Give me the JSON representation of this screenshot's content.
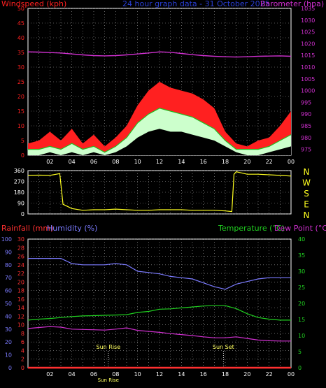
{
  "header": {
    "left": "Windspeed (kph)",
    "center": "24 hour graph data - 31 October 2025",
    "right": "Barometer (hpa)"
  },
  "colors": {
    "windspeed": "#ff2020",
    "barometer": "#d030d0",
    "title": "#2a3fd6",
    "wind_avg": "#20c020",
    "wind_light": "#ccffcc",
    "direction": "#ffff20",
    "rainfall": "#ff3030",
    "humidity": "#7b7bff",
    "temperature": "#20d020",
    "dew_point": "#d030d0",
    "frame": "#ffffff",
    "grid": "#aaaaaa"
  },
  "chart_data": [
    {
      "type": "area",
      "name": "wind-barometer",
      "left_axis": {
        "label": "Windspeed (kph)",
        "ticks": [
          0,
          5,
          10,
          15,
          20,
          25,
          30,
          35,
          40,
          45,
          50
        ],
        "range": [
          0,
          50
        ]
      },
      "right_axis": {
        "label": "Barometer (hpa)",
        "ticks": [
          975,
          980,
          985,
          990,
          995,
          1000,
          1005,
          1010,
          1015,
          1020,
          1025,
          1030,
          1035
        ],
        "range": [
          972.5,
          1035
        ]
      },
      "x_ticks": [
        "02",
        "04",
        "06",
        "08",
        "10",
        "12",
        "14",
        "16",
        "18",
        "20",
        "22",
        "00"
      ],
      "x_hours": [
        0,
        1,
        2,
        3,
        4,
        5,
        6,
        7,
        8,
        9,
        10,
        11,
        12,
        13,
        14,
        15,
        16,
        17,
        18,
        19,
        20,
        21,
        22,
        23,
        24
      ],
      "gust": [
        4,
        5,
        8,
        5,
        9,
        4,
        7,
        3,
        6,
        10,
        17,
        22,
        25,
        23,
        22,
        21,
        19,
        16,
        8,
        4,
        3,
        5,
        6,
        10,
        15
      ],
      "average": [
        2,
        2,
        3,
        2,
        4,
        2,
        3,
        1,
        3,
        6,
        11,
        14,
        16,
        15,
        14,
        13,
        11,
        9,
        5,
        2,
        2,
        2,
        3,
        5,
        7
      ],
      "lull": [
        0,
        0,
        1,
        0,
        1,
        0,
        1,
        0,
        1,
        3,
        6,
        8,
        9,
        8,
        8,
        7,
        6,
        5,
        3,
        1,
        0,
        0,
        1,
        2,
        3
      ],
      "barometer": [
        1016.5,
        1016.4,
        1016.2,
        1016.0,
        1015.6,
        1015.2,
        1014.9,
        1014.8,
        1014.9,
        1015.2,
        1015.6,
        1016.0,
        1016.5,
        1016.3,
        1015.8,
        1015.3,
        1014.9,
        1014.6,
        1014.4,
        1014.3,
        1014.4,
        1014.6,
        1014.7,
        1014.8,
        1014.6
      ]
    },
    {
      "type": "line",
      "name": "wind-direction",
      "left_axis": {
        "ticks": [
          0,
          90,
          180,
          270,
          360
        ],
        "range": [
          0,
          360
        ]
      },
      "right_labels": [
        "N",
        "W",
        "S",
        "E",
        "N"
      ],
      "x_ticks": [
        "02",
        "04",
        "06",
        "08",
        "10",
        "12",
        "14",
        "16",
        "18",
        "20",
        "22",
        "00"
      ],
      "x_hours": [
        0,
        1,
        2,
        2.9,
        3.2,
        4,
        5,
        6,
        7,
        8,
        9,
        10,
        11,
        12,
        13,
        14,
        15,
        16,
        17,
        18,
        18.6,
        18.8,
        19,
        20,
        21,
        22,
        23,
        24
      ],
      "direction": [
        320,
        322,
        320,
        335,
        80,
        45,
        30,
        35,
        35,
        40,
        35,
        30,
        30,
        35,
        35,
        35,
        30,
        30,
        30,
        25,
        20,
        330,
        350,
        330,
        330,
        325,
        320,
        315
      ]
    },
    {
      "type": "line",
      "name": "temp-humidity",
      "header_left_1": "Rainfall (mm)",
      "header_left_2": "Humidity (%)",
      "header_right_1": "Temperature (°C)",
      "header_right_2": "Dew Point (°C)",
      "humidity_axis": {
        "ticks": [
          0,
          10,
          20,
          30,
          40,
          50,
          60,
          70,
          80,
          90,
          100
        ],
        "range": [
          0,
          100
        ]
      },
      "rainfall_axis": {
        "ticks": [
          0,
          2,
          4,
          6,
          8,
          10,
          12,
          14,
          16,
          18,
          20,
          22,
          24,
          26,
          28,
          30
        ],
        "range": [
          0,
          30
        ]
      },
      "temperature_axis": {
        "ticks": [
          0,
          5,
          10,
          15,
          20,
          25,
          30,
          35,
          40
        ],
        "range": [
          0,
          40
        ]
      },
      "x_ticks": [
        "02",
        "04",
        "06",
        "08",
        "10",
        "12",
        "14",
        "16",
        "18",
        "20",
        "22",
        "00"
      ],
      "x_hours": [
        0,
        1,
        2,
        3,
        4,
        5,
        6,
        7,
        8,
        9,
        10,
        11,
        12,
        13,
        14,
        15,
        16,
        17,
        18,
        19,
        20,
        21,
        22,
        23,
        24
      ],
      "humidity": [
        85,
        85,
        85,
        85,
        81,
        80,
        80,
        80,
        81,
        80,
        75,
        74,
        73,
        71,
        70,
        69,
        66,
        63,
        61,
        65,
        67,
        69,
        70,
        70,
        70
      ],
      "temperature": [
        14.8,
        15.1,
        15.3,
        15.6,
        15.9,
        16.1,
        16.2,
        16.3,
        16.4,
        16.5,
        17.2,
        17.5,
        18.2,
        18.3,
        18.6,
        18.9,
        19.2,
        19.3,
        19.3,
        18.4,
        16.8,
        15.6,
        15.1,
        14.8,
        14.8
      ],
      "dew_point": [
        12.2,
        12.5,
        12.8,
        12.6,
        12.0,
        11.9,
        11.8,
        11.7,
        12.0,
        12.4,
        11.6,
        11.3,
        11.0,
        10.6,
        10.3,
        10.0,
        9.6,
        9.3,
        9.3,
        9.6,
        9.1,
        8.6,
        8.4,
        8.3,
        8.3
      ],
      "rainfall": [
        0,
        0,
        0,
        0,
        0,
        0,
        0,
        0,
        0,
        0,
        0,
        0,
        0,
        0,
        0,
        0,
        0,
        0,
        0,
        0,
        0,
        0,
        0,
        0,
        0
      ],
      "markers": [
        {
          "label": "Sun Rise",
          "hour": 7.33
        },
        {
          "label": "Sun Set",
          "hour": 17.83
        }
      ],
      "tick_label_overlay": "Sun Rise"
    }
  ]
}
